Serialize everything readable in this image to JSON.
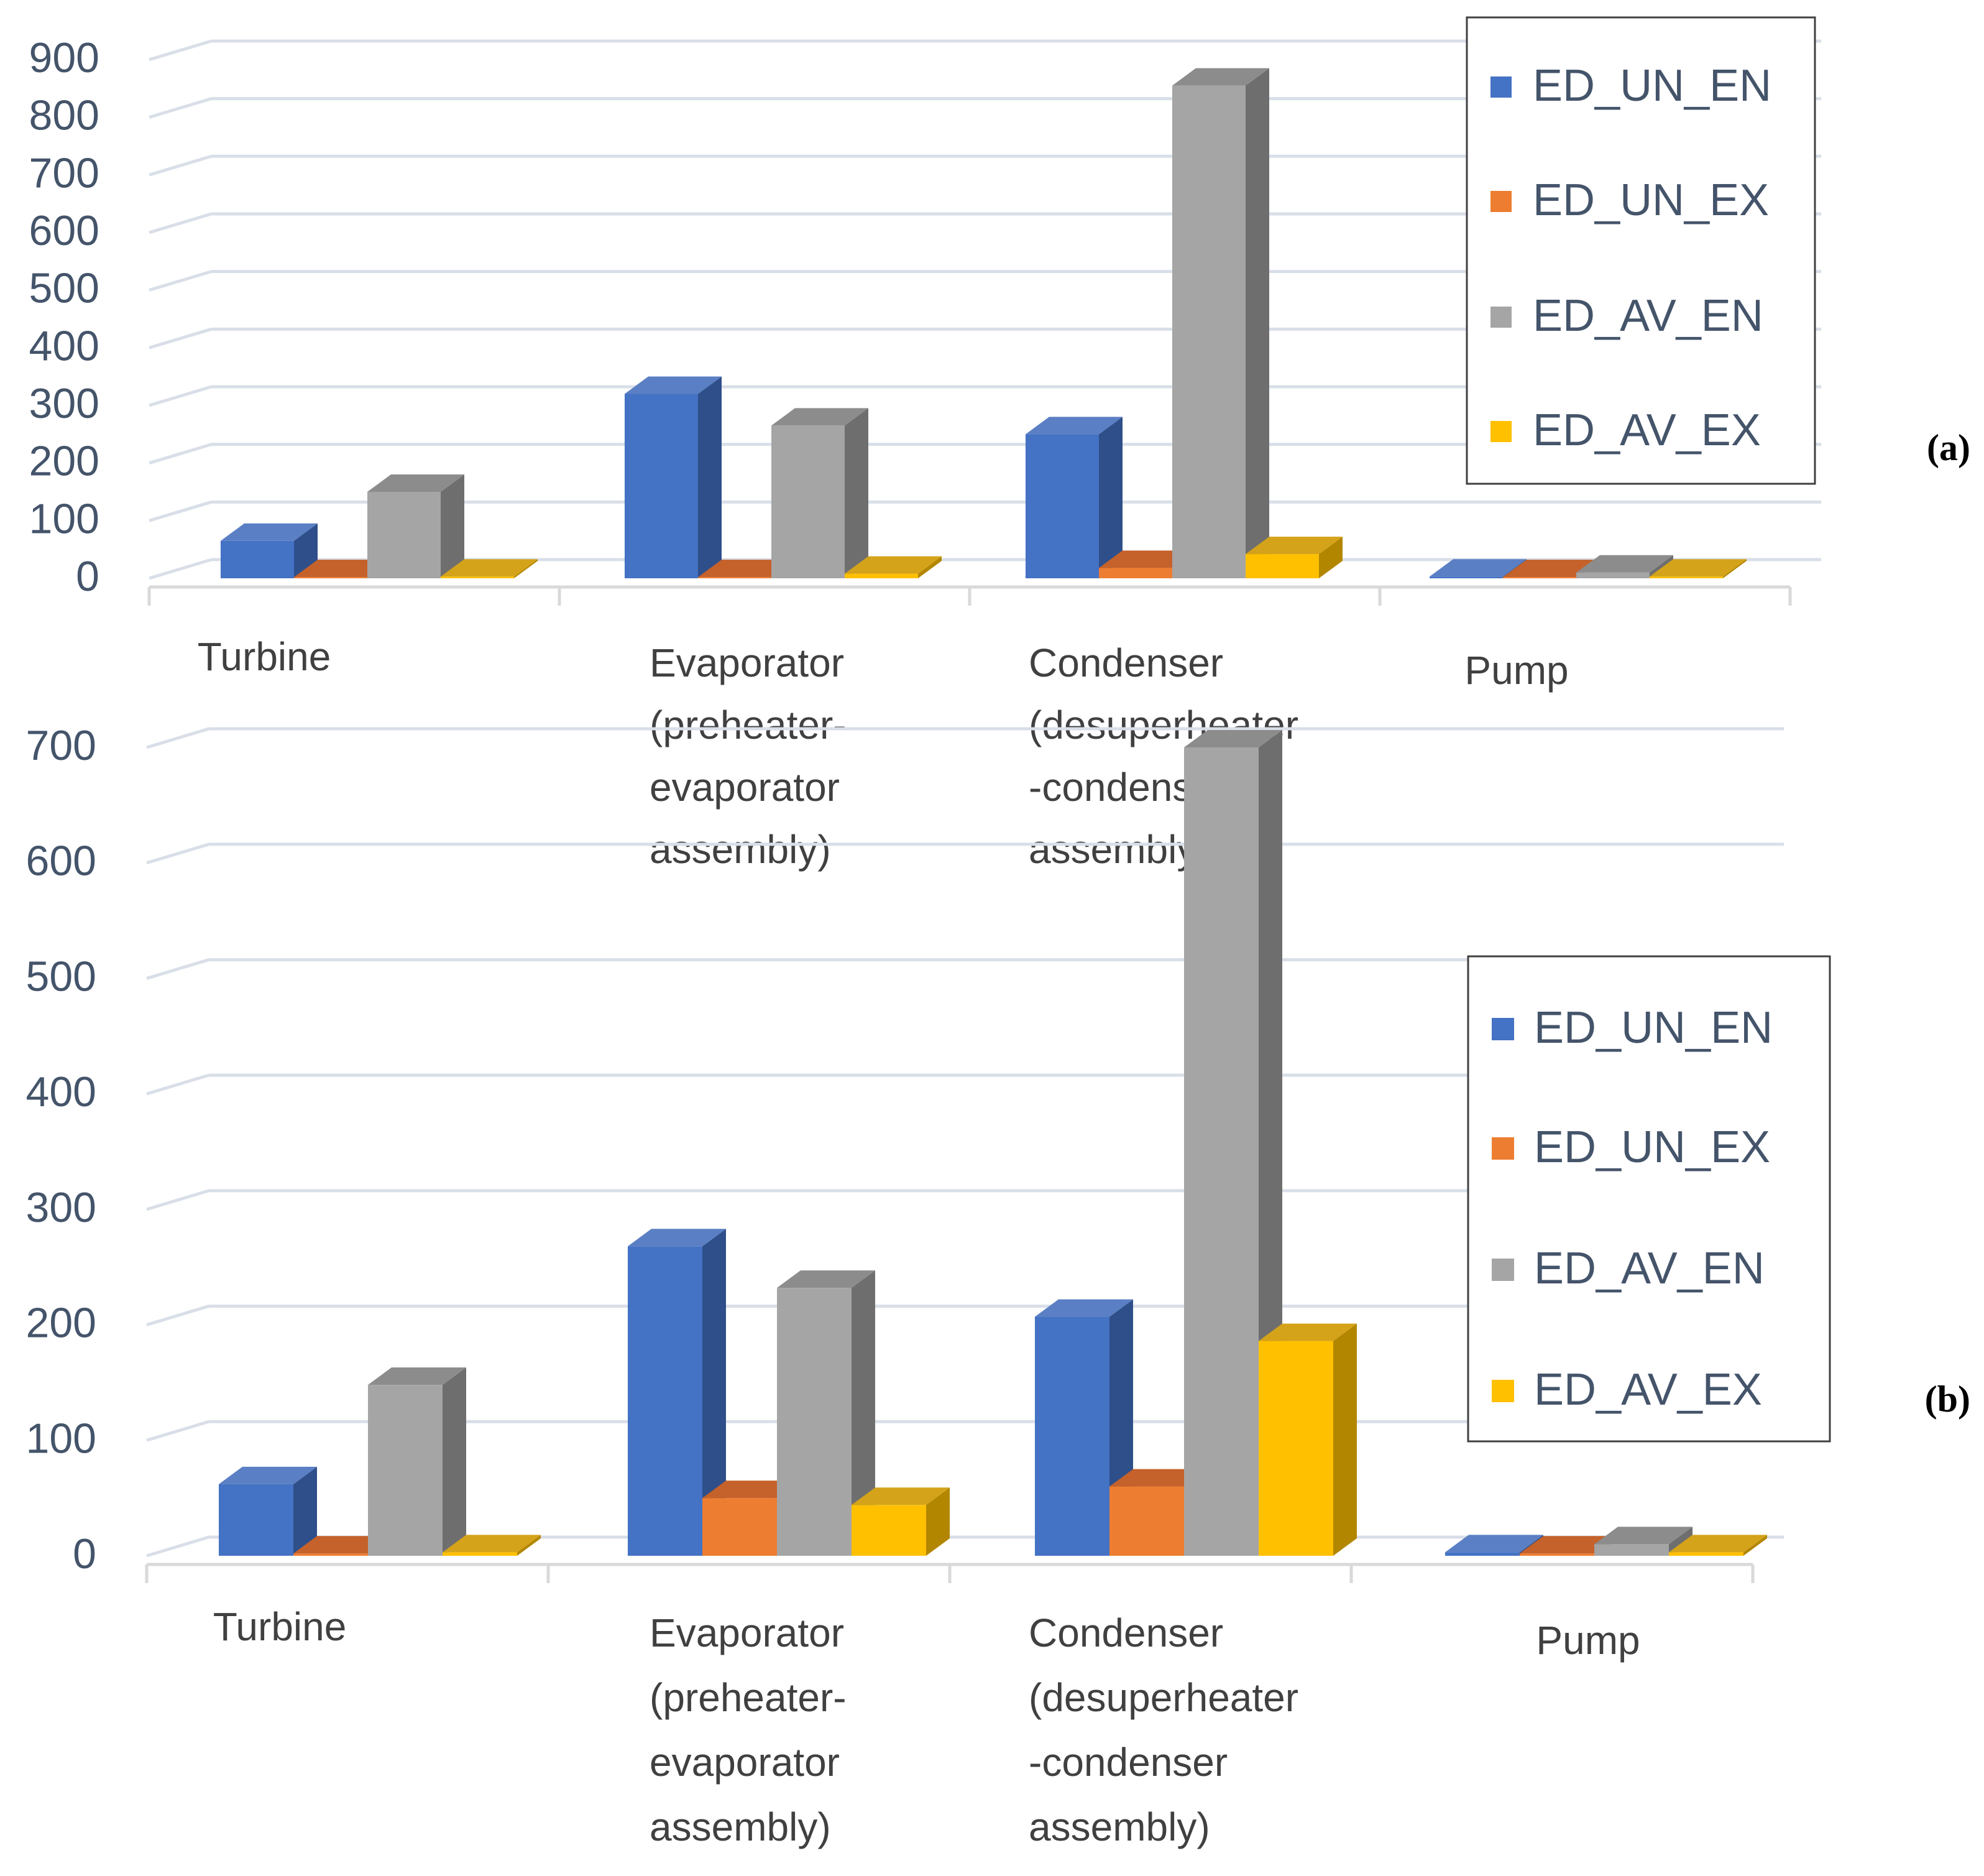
{
  "colors": {
    "ED_UN_EN": {
      "front": "#4472c4",
      "side": "#2f4f8a",
      "top": "#5a7fc4"
    },
    "ED_UN_EX": {
      "front": "#ed7d31",
      "side": "#a4561f",
      "top": "#c5612a"
    },
    "ED_AV_EN": {
      "front": "#a5a5a5",
      "side": "#6e6e6e",
      "top": "#8c8c8c"
    },
    "ED_AV_EX": {
      "front": "#ffc000",
      "side": "#b38600",
      "top": "#d4a31a"
    },
    "grid": "#d9dfe8",
    "axis": "#d9d9d9"
  },
  "chart_data": [
    {
      "type": "bar",
      "panel_label": "(a)",
      "categories": [
        [
          "Turbine"
        ],
        [
          "Evaporator",
          "(preheater-",
          "evaporator",
          "assembly)"
        ],
        [
          "Condenser",
          "(desuperheater",
          "-condenser",
          "assembly)"
        ],
        [
          "Pump"
        ]
      ],
      "series": [
        {
          "name": "ED_UN_EN",
          "values": [
            65,
            320,
            250,
            3
          ]
        },
        {
          "name": "ED_UN_EX",
          "values": [
            2,
            2,
            18,
            2
          ]
        },
        {
          "name": "ED_AV_EN",
          "values": [
            150,
            265,
            855,
            10
          ]
        },
        {
          "name": "ED_AV_EX",
          "values": [
            3,
            8,
            42,
            3
          ]
        }
      ],
      "yticks": [
        "0",
        "100",
        "200",
        "300",
        "400",
        "500",
        "600",
        "700",
        "800",
        "900"
      ],
      "ylim": [
        0,
        900
      ],
      "legend": [
        "ED_UN_EN",
        "ED_UN_EX",
        "ED_AV_EN",
        "ED_AV_EX"
      ]
    },
    {
      "type": "bar",
      "panel_label": "(b)",
      "categories": [
        [
          "Turbine"
        ],
        [
          "Evaporator",
          "(preheater-",
          "evaporator",
          "assembly)"
        ],
        [
          "Condenser",
          "(desuperheater",
          "-condenser",
          "assembly)"
        ],
        [
          "Pump"
        ]
      ],
      "series": [
        {
          "name": "ED_UN_EN",
          "values": [
            62,
            268,
            207,
            3
          ]
        },
        {
          "name": "ED_UN_EX",
          "values": [
            2,
            50,
            60,
            2
          ]
        },
        {
          "name": "ED_AV_EN",
          "values": [
            148,
            232,
            700,
            10
          ]
        },
        {
          "name": "ED_AV_EX",
          "values": [
            3,
            44,
            186,
            3
          ]
        }
      ],
      "yticks": [
        "0",
        "100",
        "200",
        "300",
        "400",
        "500",
        "600",
        "700"
      ],
      "ylim": [
        0,
        700
      ],
      "legend": [
        "ED_UN_EN",
        "ED_UN_EX",
        "ED_AV_EN",
        "ED_AV_EX"
      ]
    }
  ]
}
